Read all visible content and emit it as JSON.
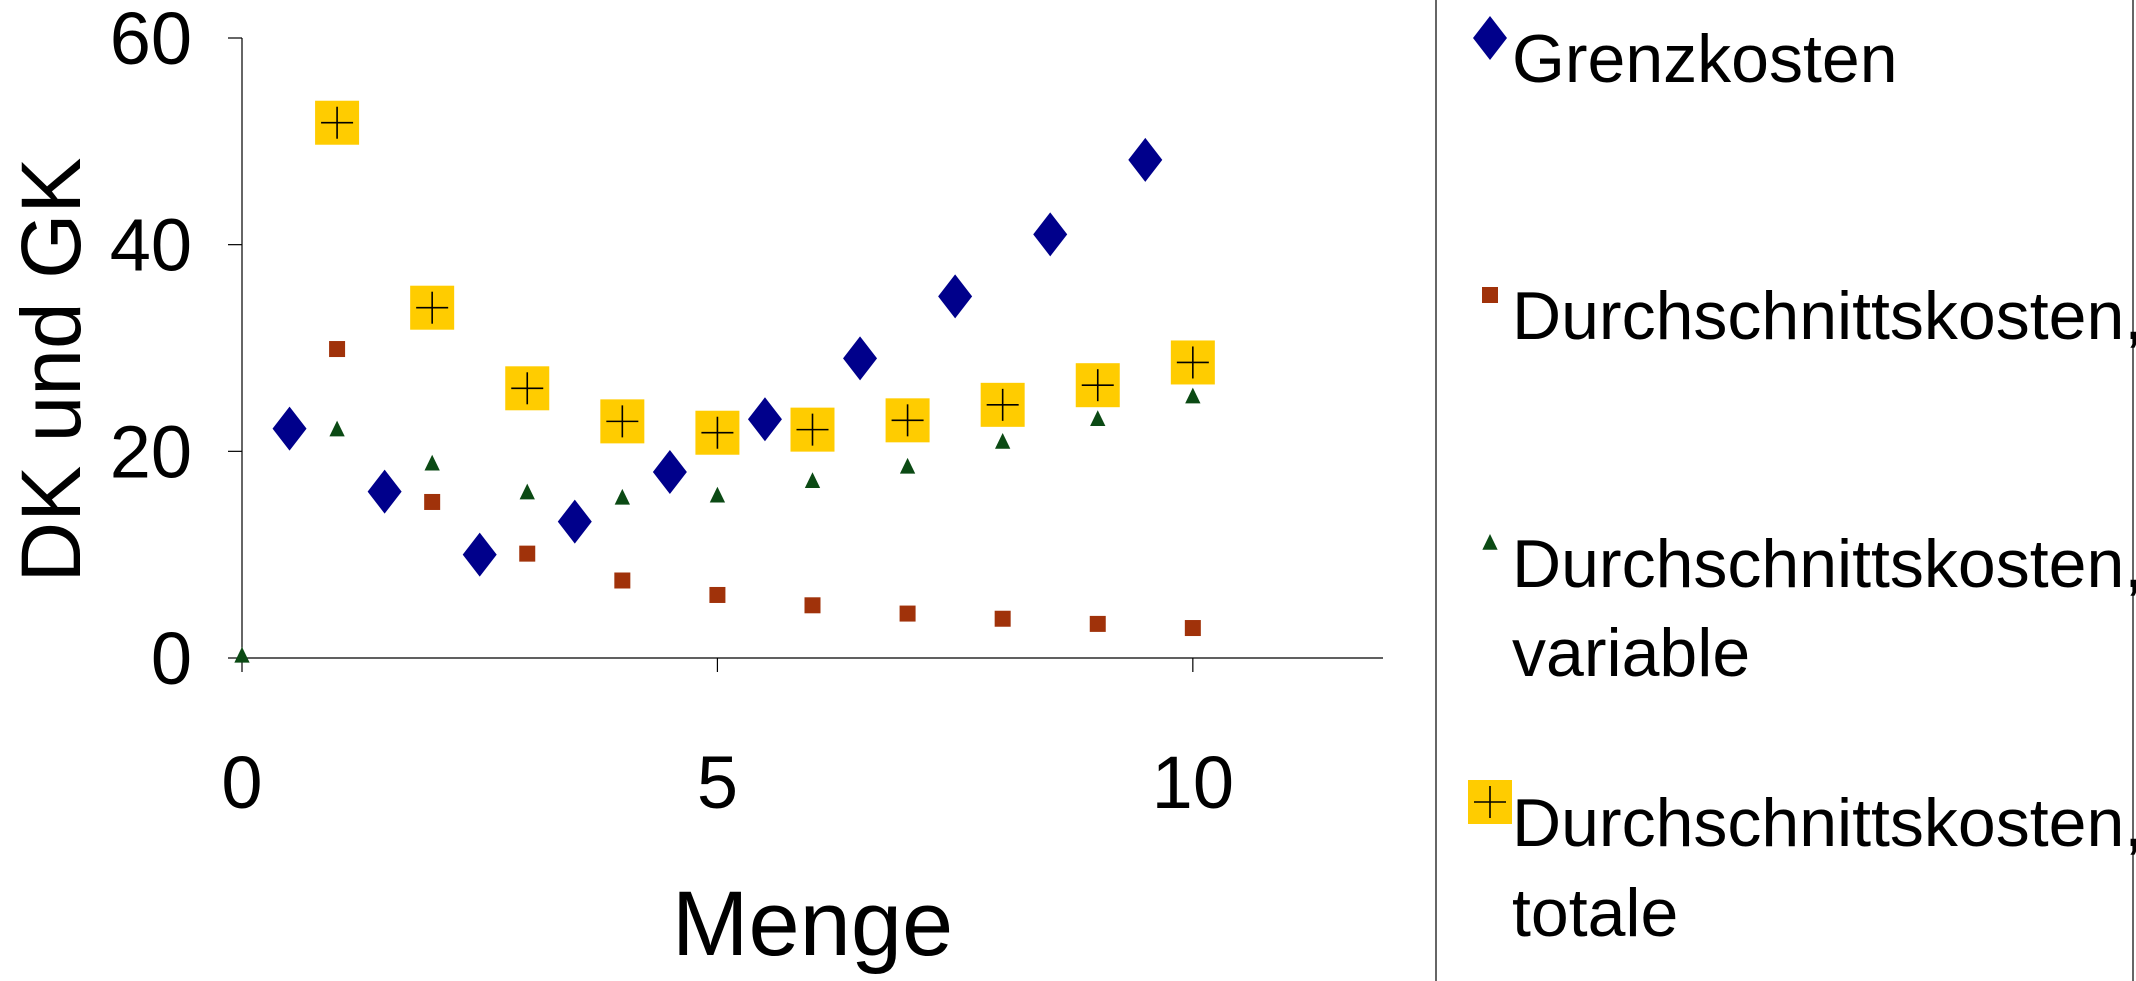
{
  "chart_data": {
    "type": "scatter",
    "title": "",
    "xlabel": "Menge",
    "ylabel": "DK und GK",
    "xlim": [
      0,
      12
    ],
    "ylim": [
      0,
      60
    ],
    "xticks": [
      0,
      5,
      10
    ],
    "yticks": [
      0,
      20,
      40,
      60
    ],
    "xtick_labels": [
      "0",
      "5",
      "10"
    ],
    "ytick_labels": [
      "0",
      "20",
      "40",
      "60"
    ],
    "grid": false,
    "legend_position": "right",
    "series": [
      {
        "name": "Grenzkosten",
        "marker": "diamond",
        "color": "#00008B",
        "x": [
          0.5,
          1.5,
          2.5,
          3.5,
          4.5,
          5.5,
          6.5,
          7.5,
          8.5,
          9.5
        ],
        "y": [
          22.2,
          16.1,
          10.0,
          13.2,
          18.0,
          23.1,
          29.0,
          35.0,
          41.0,
          48.2
        ]
      },
      {
        "name": "Durchschnittskosten, fixe",
        "marker": "square",
        "color": "#A0320A",
        "x": [
          1,
          2,
          3,
          4,
          5,
          6,
          7,
          8,
          9,
          10
        ],
        "y": [
          29.9,
          15.1,
          10.1,
          7.5,
          6.1,
          5.1,
          4.3,
          3.8,
          3.3,
          2.9
        ]
      },
      {
        "name": "Durchschnittskosten, variable",
        "marker": "triangle",
        "color": "#0B4A14",
        "x": [
          0,
          1,
          2,
          3,
          4,
          5,
          6,
          7,
          8,
          9,
          10
        ],
        "y": [
          0.2,
          22.1,
          18.8,
          16.0,
          15.5,
          15.7,
          17.1,
          18.5,
          20.9,
          23.1,
          25.3
        ]
      },
      {
        "name": "Durchschnittskosten, totale",
        "marker": "plus-box",
        "color": "#FFCC00",
        "x": [
          1,
          2,
          3,
          4,
          5,
          6,
          7,
          8,
          9,
          10
        ],
        "y": [
          51.8,
          33.9,
          26.1,
          22.9,
          21.8,
          22.1,
          23.0,
          24.5,
          26.4,
          28.6
        ]
      }
    ],
    "legend": [
      {
        "lines": [
          "Grenzkosten"
        ]
      },
      {
        "lines": [
          "Durchschnittskosten, fixe"
        ]
      },
      {
        "lines": [
          "Durchschnittskosten,",
          "variable"
        ]
      },
      {
        "lines": [
          "Durchschnittskosten,",
          "totale"
        ]
      }
    ]
  }
}
